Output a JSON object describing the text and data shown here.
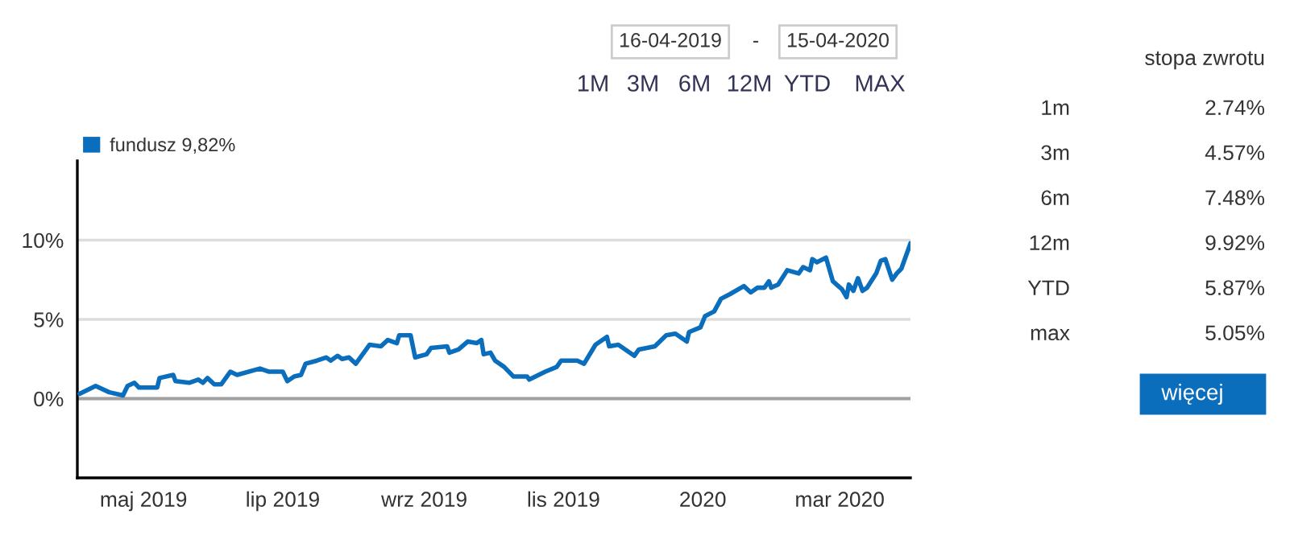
{
  "chart_data": [
    {
      "type": "line",
      "annotations": [
        "16-04-2019",
        "-",
        "15-04-2020",
        "1M",
        "3M",
        "6M",
        "12M",
        "YTD",
        "MAX"
      ],
      "series": [
        {
          "name": "fundusz 9,82%",
          "color": "#0a6ebd",
          "x": [
            "2019-04-17",
            "2019-04-24",
            "2019-04-30",
            "2019-05-06",
            "2019-05-08",
            "2019-05-11",
            "2019-05-13",
            "2019-05-21",
            "2019-05-22",
            "2019-05-28",
            "2019-05-29",
            "2019-06-04",
            "2019-06-08",
            "2019-06-10",
            "2019-06-12",
            "2019-06-15",
            "2019-06-18",
            "2019-06-22",
            "2019-06-25",
            "2019-07-05",
            "2019-07-09",
            "2019-07-15",
            "2019-07-17",
            "2019-07-20",
            "2019-07-23",
            "2019-07-25",
            "2019-07-30",
            "2019-08-03",
            "2019-08-05",
            "2019-08-08",
            "2019-08-10",
            "2019-08-13",
            "2019-08-16",
            "2019-08-19",
            "2019-08-22",
            "2019-08-27",
            "2019-08-30",
            "2019-09-03",
            "2019-09-04",
            "2019-09-09",
            "2019-09-11",
            "2019-09-16",
            "2019-09-18",
            "2019-09-25",
            "2019-09-26",
            "2019-09-30",
            "2019-10-04",
            "2019-10-08",
            "2019-10-10",
            "2019-10-11",
            "2019-10-14",
            "2019-10-16",
            "2019-10-20",
            "2019-10-24",
            "2019-10-30",
            "2019-10-31",
            "2019-11-07",
            "2019-11-12",
            "2019-11-14",
            "2019-11-21",
            "2019-11-24",
            "2019-11-29",
            "2019-12-04",
            "2019-12-05",
            "2019-12-09",
            "2019-12-16",
            "2019-12-18",
            "2019-12-25",
            "2019-12-30",
            "2020-01-03",
            "2020-01-08",
            "2020-01-09",
            "2020-01-14",
            "2020-01-16",
            "2020-01-20",
            "2020-01-23",
            "2020-01-27",
            "2020-02-02",
            "2020-02-05",
            "2020-02-08",
            "2020-02-11",
            "2020-02-13",
            "2020-02-14",
            "2020-02-17",
            "2020-02-21",
            "2020-02-26",
            "2020-02-28",
            "2020-03-02",
            "2020-03-03",
            "2020-03-05",
            "2020-03-09",
            "2020-03-12",
            "2020-03-16",
            "2020-03-18",
            "2020-03-19",
            "2020-03-21",
            "2020-03-23",
            "2020-03-25",
            "2020-03-27",
            "2020-03-31",
            "2020-04-02",
            "2020-04-04",
            "2020-04-07",
            "2020-04-09",
            "2020-04-11",
            "2020-04-15"
          ],
          "values": [
            0.3,
            0.8,
            0.4,
            0.2,
            0.8,
            1.0,
            0.7,
            0.7,
            1.3,
            1.5,
            1.1,
            1.0,
            1.2,
            1.0,
            1.3,
            0.9,
            0.9,
            1.7,
            1.5,
            1.9,
            1.7,
            1.7,
            1.1,
            1.4,
            1.5,
            2.2,
            2.4,
            2.6,
            2.4,
            2.7,
            2.5,
            2.6,
            2.2,
            2.8,
            3.4,
            3.3,
            3.7,
            3.5,
            4.0,
            4.0,
            2.6,
            2.8,
            3.2,
            3.3,
            2.9,
            3.1,
            3.6,
            3.5,
            3.7,
            2.8,
            2.9,
            2.4,
            2.0,
            1.4,
            1.4,
            1.2,
            1.7,
            2.0,
            2.4,
            2.4,
            2.2,
            3.4,
            3.9,
            3.3,
            3.4,
            2.7,
            3.1,
            3.3,
            4.0,
            4.1,
            3.6,
            4.2,
            4.5,
            5.2,
            5.5,
            6.3,
            6.6,
            7.1,
            6.7,
            7.0,
            7.0,
            7.4,
            7.0,
            7.2,
            8.1,
            7.9,
            8.3,
            8.1,
            8.8,
            8.6,
            8.9,
            7.4,
            6.9,
            6.4,
            7.2,
            6.8,
            7.6,
            6.8,
            7.0,
            7.9,
            8.7,
            8.8,
            7.5,
            7.9,
            8.2,
            9.8
          ]
        }
      ],
      "xlim": [
        "2019-04-16",
        "2020-04-15"
      ],
      "xticks": [
        {
          "value": "2019-05-15",
          "label": "maj 2019"
        },
        {
          "value": "2019-07-15",
          "label": "lip 2019"
        },
        {
          "value": "2019-09-15",
          "label": "wrz 2019"
        },
        {
          "value": "2019-11-15",
          "label": "lis 2019"
        },
        {
          "value": "2020-01-15",
          "label": "2020"
        },
        {
          "value": "2020-03-15",
          "label": "mar 2020"
        }
      ],
      "ylim": [
        -5,
        15
      ],
      "yticks": [
        {
          "value": 0,
          "label": "0%"
        },
        {
          "value": 5,
          "label": "5%"
        },
        {
          "value": 10,
          "label": "10%"
        }
      ],
      "ref_lines": [
        {
          "axis": "y",
          "value": 0,
          "color": "#a0a0a0"
        }
      ],
      "grid": "y",
      "legend": "top left",
      "line_style": "solid"
    },
    {
      "type": "other",
      "title": "stopa zwrotu",
      "categories": [
        "1m",
        "3m",
        "6m",
        "12m",
        "YTD",
        "max"
      ],
      "annotations": [
        "2.74%",
        "4.57%",
        "7.48%",
        "9.92%",
        "5.87%",
        "5.05%",
        "więcej"
      ]
    }
  ]
}
